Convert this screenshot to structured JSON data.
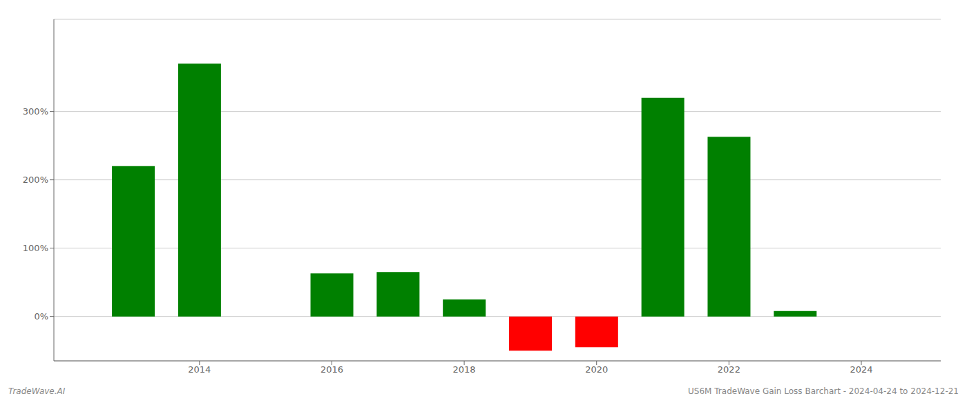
{
  "chart_data": {
    "type": "bar",
    "x": [
      2013,
      2014,
      2016,
      2017,
      2018,
      2019,
      2020,
      2021,
      2022,
      2023
    ],
    "values": [
      2.2,
      3.7,
      0.63,
      0.65,
      0.25,
      -0.5,
      -0.45,
      3.2,
      2.63,
      0.08
    ],
    "colors": [
      "#008000",
      "#008000",
      "#008000",
      "#008000",
      "#008000",
      "#ff0000",
      "#ff0000",
      "#008000",
      "#008000",
      "#008000"
    ],
    "xlim": [
      2011.8,
      2025.2
    ],
    "xticks": [
      2014,
      2016,
      2018,
      2020,
      2022,
      2024
    ],
    "ylim": [
      -0.65,
      4.35
    ],
    "yticks": [
      {
        "value": 0,
        "label": "0%"
      },
      {
        "value": 1,
        "label": "100%"
      },
      {
        "value": 2,
        "label": "200%"
      },
      {
        "value": 3,
        "label": "300%"
      }
    ],
    "grid": "y",
    "annotations": [
      "TradeWave.AI",
      "US6M TradeWave Gain Loss Barchart - 2024-04-24 to 2024-12-21"
    ]
  }
}
